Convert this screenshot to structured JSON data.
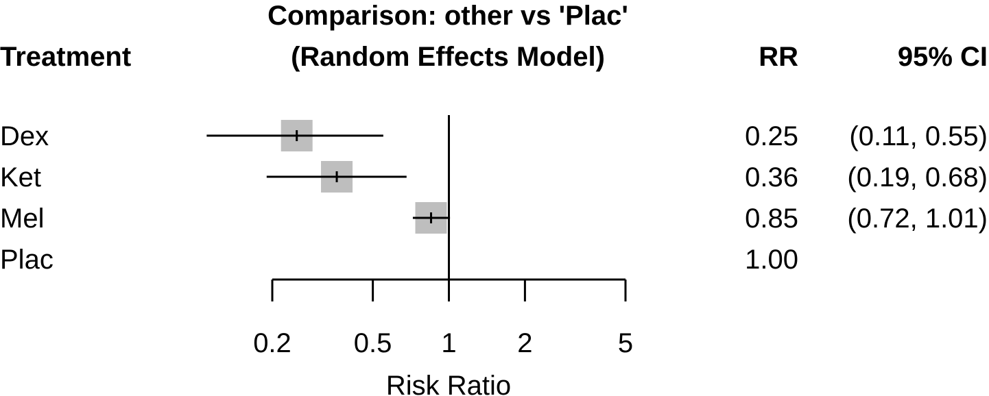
{
  "chart_data": {
    "type": "forest",
    "title_line1": "Comparison: other vs 'Plac'",
    "title_line2": "(Random Effects Model)",
    "col_treatment": "Treatment",
    "col_rr": "RR",
    "col_ci": "95% CI",
    "xlabel": "Risk Ratio",
    "x_scale": "log",
    "xlim": [
      0.2,
      5
    ],
    "x_ticks": [
      0.2,
      0.5,
      1,
      2,
      5
    ],
    "x_tick_labels": [
      "0.2",
      "0.5",
      "1",
      "2",
      "5"
    ],
    "reference_line": 1,
    "marker_color": "#bebebe",
    "rows": [
      {
        "treatment": "Dex",
        "rr": 0.25,
        "lower": 0.11,
        "upper": 0.55,
        "rr_label": "0.25",
        "ci_label": "(0.11, 0.55)"
      },
      {
        "treatment": "Ket",
        "rr": 0.36,
        "lower": 0.19,
        "upper": 0.68,
        "rr_label": "0.36",
        "ci_label": "(0.19, 0.68)"
      },
      {
        "treatment": "Mel",
        "rr": 0.85,
        "lower": 0.72,
        "upper": 1.01,
        "rr_label": "0.85",
        "ci_label": "(0.72, 1.01)"
      },
      {
        "treatment": "Plac",
        "rr": 1.0,
        "lower": null,
        "upper": null,
        "rr_label": "1.00",
        "ci_label": ""
      }
    ]
  }
}
